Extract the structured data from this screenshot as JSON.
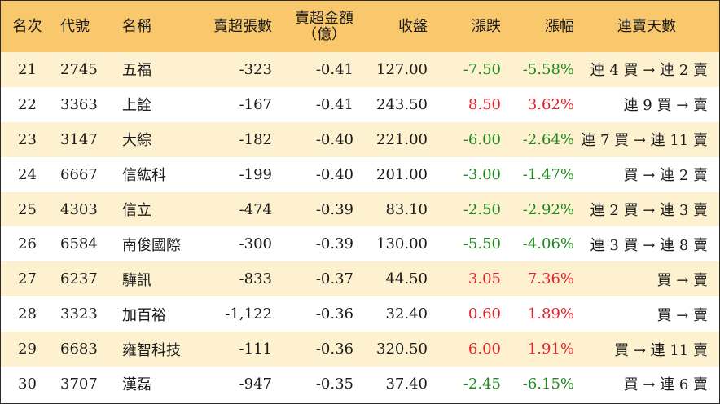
{
  "headers": {
    "rank": "名次",
    "code": "代號",
    "name": "名稱",
    "sell_volume": "賣超張數",
    "sell_amount_line1": "賣超金額",
    "sell_amount_line2": "（億）",
    "close": "收盤",
    "change": "漲跌",
    "change_pct": "漲幅",
    "streak": "連賣天數"
  },
  "colors": {
    "header_bg": "#f9c86d",
    "odd_row_bg": "#fdf1d0",
    "even_row_bg": "#ffffff",
    "up": "#e8202a",
    "down": "#1f8a1f"
  },
  "rows": [
    {
      "rank": "21",
      "code": "2745",
      "name": "五福",
      "volume": "-323",
      "amount": "-0.41",
      "close": "127.00",
      "change": "-7.50",
      "pct": "-5.58%",
      "streak": "連 4 買 → 連 2 賣",
      "dir": "down"
    },
    {
      "rank": "22",
      "code": "3363",
      "name": "上詮",
      "volume": "-167",
      "amount": "-0.41",
      "close": "243.50",
      "change": "8.50",
      "pct": "3.62%",
      "streak": "連 9 買 → 賣",
      "dir": "up"
    },
    {
      "rank": "23",
      "code": "3147",
      "name": "大綜",
      "volume": "-182",
      "amount": "-0.40",
      "close": "221.00",
      "change": "-6.00",
      "pct": "-2.64%",
      "streak": "連 7 買 → 連 11 賣",
      "dir": "down"
    },
    {
      "rank": "24",
      "code": "6667",
      "name": "信紘科",
      "volume": "-199",
      "amount": "-0.40",
      "close": "201.00",
      "change": "-3.00",
      "pct": "-1.47%",
      "streak": "買 → 連 2 賣",
      "dir": "down"
    },
    {
      "rank": "25",
      "code": "4303",
      "name": "信立",
      "volume": "-474",
      "amount": "-0.39",
      "close": "83.10",
      "change": "-2.50",
      "pct": "-2.92%",
      "streak": "連 2 買 → 連 3 賣",
      "dir": "down"
    },
    {
      "rank": "26",
      "code": "6584",
      "name": "南俊國際",
      "volume": "-300",
      "amount": "-0.39",
      "close": "130.00",
      "change": "-5.50",
      "pct": "-4.06%",
      "streak": "連 3 買 → 連 8 賣",
      "dir": "down"
    },
    {
      "rank": "27",
      "code": "6237",
      "name": "驊訊",
      "volume": "-833",
      "amount": "-0.37",
      "close": "44.50",
      "change": "3.05",
      "pct": "7.36%",
      "streak": "買 → 賣",
      "dir": "up"
    },
    {
      "rank": "28",
      "code": "3323",
      "name": "加百裕",
      "volume": "-1,122",
      "amount": "-0.36",
      "close": "32.40",
      "change": "0.60",
      "pct": "1.89%",
      "streak": "買 → 賣",
      "dir": "up"
    },
    {
      "rank": "29",
      "code": "6683",
      "name": "雍智科技",
      "volume": "-111",
      "amount": "-0.36",
      "close": "320.50",
      "change": "6.00",
      "pct": "1.91%",
      "streak": "買 → 連 11 賣",
      "dir": "up"
    },
    {
      "rank": "30",
      "code": "3707",
      "name": "漢磊",
      "volume": "-947",
      "amount": "-0.35",
      "close": "37.40",
      "change": "-2.45",
      "pct": "-6.15%",
      "streak": "買 → 連 6 賣",
      "dir": "down"
    }
  ]
}
